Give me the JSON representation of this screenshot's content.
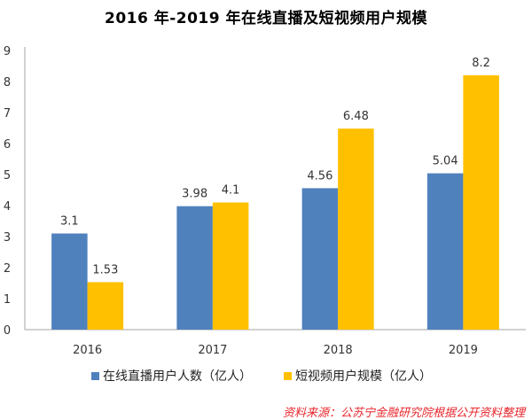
{
  "chart_data": {
    "type": "bar",
    "title": "2016 年-2019 年在线直播及短视频用户规模",
    "categories": [
      "2016",
      "2017",
      "2018",
      "2019"
    ],
    "series": [
      {
        "name": "在线直播用户人数（亿人）",
        "values": [
          3.1,
          3.98,
          4.56,
          5.04
        ],
        "color": "#4f81bd"
      },
      {
        "name": "短视频用户规模（亿人）",
        "values": [
          1.53,
          4.1,
          6.48,
          8.2
        ],
        "color": "#ffc000"
      }
    ],
    "ylim": [
      0,
      9
    ],
    "yticks": [
      0,
      1,
      2,
      3,
      4,
      5,
      6,
      7,
      8,
      9
    ],
    "grid": false,
    "legend": "bottom",
    "data_labels": true
  },
  "source": "资料来源：公苏宁金融研究院根据公开资料整理"
}
